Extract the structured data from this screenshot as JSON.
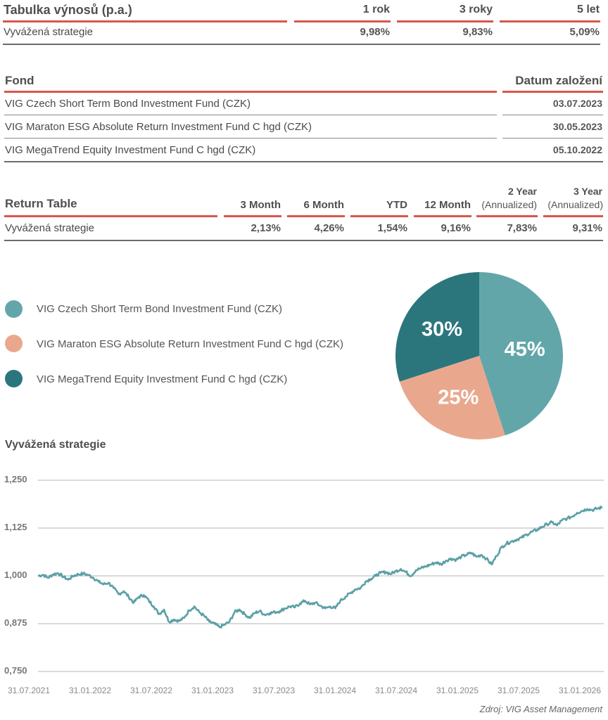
{
  "returns_table_cz": {
    "title": "Tabulka výnosů (p.a.)",
    "columns": [
      "1 rok",
      "3 roky",
      "5 let"
    ],
    "rows": [
      {
        "label": "Vyvážená strategie",
        "values": [
          "9,98%",
          "9,83%",
          "5,09%"
        ]
      }
    ]
  },
  "funds_table": {
    "columns": [
      "Fond",
      "Datum založení"
    ],
    "rows": [
      {
        "fund": "VIG Czech Short Term Bond Investment Fund (CZK)",
        "date": "03.07.2023"
      },
      {
        "fund": "VIG Maraton ESG Absolute Return Investment Fund C hgd (CZK)",
        "date": "30.05.2023"
      },
      {
        "fund": "VIG MegaTrend Equity Investment Fund C hgd (CZK)",
        "date": "05.10.2022"
      }
    ]
  },
  "return_table_en": {
    "title": "Return Table",
    "columns": [
      {
        "line1": "3 Month",
        "line2": ""
      },
      {
        "line1": "6 Month",
        "line2": ""
      },
      {
        "line1": "YTD",
        "line2": ""
      },
      {
        "line1": "12 Month",
        "line2": ""
      },
      {
        "line1": "2 Year",
        "line2": "(Annualized)"
      },
      {
        "line1": "3 Year",
        "line2": "(Annualized)"
      }
    ],
    "rows": [
      {
        "label": "Vyvážená strategie",
        "values": [
          "2,13%",
          "4,26%",
          "1,54%",
          "9,16%",
          "7,83%",
          "9,31%"
        ]
      }
    ]
  },
  "colors": {
    "accent_red": "#d9574a",
    "teal_light": "#63a6aa",
    "salmon": "#e9a88e",
    "teal_dark": "#2b767d",
    "line": "#5ca0a6"
  },
  "chart_data": [
    {
      "type": "pie",
      "title": "",
      "legend_position": "left",
      "slices": [
        {
          "name": "VIG Czech Short Term Bond Investment Fund (CZK)",
          "value": 45,
          "label": "45%",
          "color": "#63a6aa"
        },
        {
          "name": "VIG Maraton ESG Absolute Return Investment Fund C hgd (CZK)",
          "value": 25,
          "label": "25%",
          "color": "#e9a88e"
        },
        {
          "name": "VIG MegaTrend Equity Investment Fund C hgd (CZK)",
          "value": 30,
          "label": "30%",
          "color": "#2b767d"
        }
      ]
    },
    {
      "type": "line",
      "title": "Vyvážená strategie",
      "xlabel": "",
      "ylabel": "",
      "ylim": [
        0.75,
        1.25
      ],
      "grid": true,
      "y_ticks": [
        {
          "value": 1.25,
          "label": "1,250"
        },
        {
          "value": 1.125,
          "label": "1,125"
        },
        {
          "value": 1.0,
          "label": "1,000"
        },
        {
          "value": 0.875,
          "label": "0,875"
        },
        {
          "value": 0.75,
          "label": "0,750"
        }
      ],
      "x_ticks": [
        "31.07.2021",
        "31.01.2022",
        "31.07.2022",
        "31.01.2023",
        "31.07.2023",
        "31.01.2024",
        "31.07.2024",
        "31.01.2025",
        "31.07.2025",
        "31.01.2026"
      ],
      "x_range_months": [
        0,
        56
      ],
      "series": [
        {
          "name": "Vyvážená strategie",
          "color": "#5ca0a6",
          "points": [
            [
              0,
              1.0
            ],
            [
              0.5,
              1.003
            ],
            [
              1,
              0.995
            ],
            [
              1.5,
              1.004
            ],
            [
              2,
              1.007
            ],
            [
              2.5,
              0.998
            ],
            [
              3,
              0.99
            ],
            [
              3.5,
              1.0
            ],
            [
              4,
              1.004
            ],
            [
              4.5,
              1.006
            ],
            [
              5,
              1.002
            ],
            [
              5.5,
              0.995
            ],
            [
              6,
              0.985
            ],
            [
              6.5,
              0.978
            ],
            [
              7,
              0.982
            ],
            [
              7.5,
              0.968
            ],
            [
              8,
              0.952
            ],
            [
              8.5,
              0.96
            ],
            [
              9,
              0.945
            ],
            [
              9.5,
              0.93
            ],
            [
              10,
              0.945
            ],
            [
              10.5,
              0.95
            ],
            [
              11,
              0.935
            ],
            [
              11.5,
              0.92
            ],
            [
              12,
              0.9
            ],
            [
              12.5,
              0.912
            ],
            [
              13,
              0.88
            ],
            [
              13.5,
              0.886
            ],
            [
              14,
              0.882
            ],
            [
              14.5,
              0.89
            ],
            [
              15,
              0.91
            ],
            [
              15.5,
              0.92
            ],
            [
              16,
              0.905
            ],
            [
              16.5,
              0.895
            ],
            [
              17,
              0.88
            ],
            [
              17.5,
              0.875
            ],
            [
              18,
              0.866
            ],
            [
              18.5,
              0.872
            ],
            [
              19,
              0.88
            ],
            [
              19.5,
              0.905
            ],
            [
              20,
              0.912
            ],
            [
              20.5,
              0.9
            ],
            [
              21,
              0.89
            ],
            [
              21.5,
              0.903
            ],
            [
              22,
              0.908
            ],
            [
              22.5,
              0.898
            ],
            [
              23,
              0.903
            ],
            [
              23.5,
              0.905
            ],
            [
              24,
              0.908
            ],
            [
              24.5,
              0.915
            ],
            [
              25,
              0.92
            ],
            [
              25.5,
              0.918
            ],
            [
              26,
              0.928
            ],
            [
              26.5,
              0.935
            ],
            [
              27,
              0.925
            ],
            [
              27.5,
              0.93
            ],
            [
              28,
              0.922
            ],
            [
              28.5,
              0.915
            ],
            [
              29,
              0.92
            ],
            [
              29.5,
              0.915
            ],
            [
              30,
              0.935
            ],
            [
              30.5,
              0.945
            ],
            [
              31,
              0.955
            ],
            [
              31.5,
              0.965
            ],
            [
              32,
              0.968
            ],
            [
              32.5,
              0.985
            ],
            [
              33,
              0.992
            ],
            [
              33.5,
              1.0
            ],
            [
              34,
              1.008
            ],
            [
              34.5,
              1.01
            ],
            [
              35,
              1.005
            ],
            [
              35.5,
              1.012
            ],
            [
              36,
              1.018
            ],
            [
              36.5,
              1.01
            ],
            [
              37,
              1.0
            ],
            [
              37.5,
              1.015
            ],
            [
              38,
              1.02
            ],
            [
              38.5,
              1.025
            ],
            [
              39,
              1.03
            ],
            [
              39.5,
              1.035
            ],
            [
              40,
              1.03
            ],
            [
              40.5,
              1.04
            ],
            [
              41,
              1.045
            ],
            [
              41.5,
              1.042
            ],
            [
              42,
              1.05
            ],
            [
              42.5,
              1.055
            ],
            [
              43,
              1.06
            ],
            [
              43.5,
              1.05
            ],
            [
              44,
              1.055
            ],
            [
              44.5,
              1.045
            ],
            [
              45,
              1.03
            ],
            [
              45.5,
              1.052
            ],
            [
              46,
              1.075
            ],
            [
              46.5,
              1.085
            ],
            [
              47,
              1.09
            ],
            [
              47.5,
              1.095
            ],
            [
              48,
              1.1
            ],
            [
              48.5,
              1.108
            ],
            [
              49,
              1.115
            ],
            [
              49.5,
              1.12
            ],
            [
              50,
              1.128
            ],
            [
              50.5,
              1.135
            ],
            [
              51,
              1.14
            ],
            [
              51.5,
              1.132
            ],
            [
              52,
              1.145
            ],
            [
              52.5,
              1.15
            ],
            [
              53,
              1.155
            ],
            [
              53.5,
              1.165
            ],
            [
              54,
              1.17
            ],
            [
              54.5,
              1.175
            ],
            [
              55,
              1.172
            ],
            [
              55.5,
              1.176
            ],
            [
              56,
              1.179
            ]
          ]
        }
      ]
    }
  ],
  "source": "Zdroj: VIG Asset Management"
}
